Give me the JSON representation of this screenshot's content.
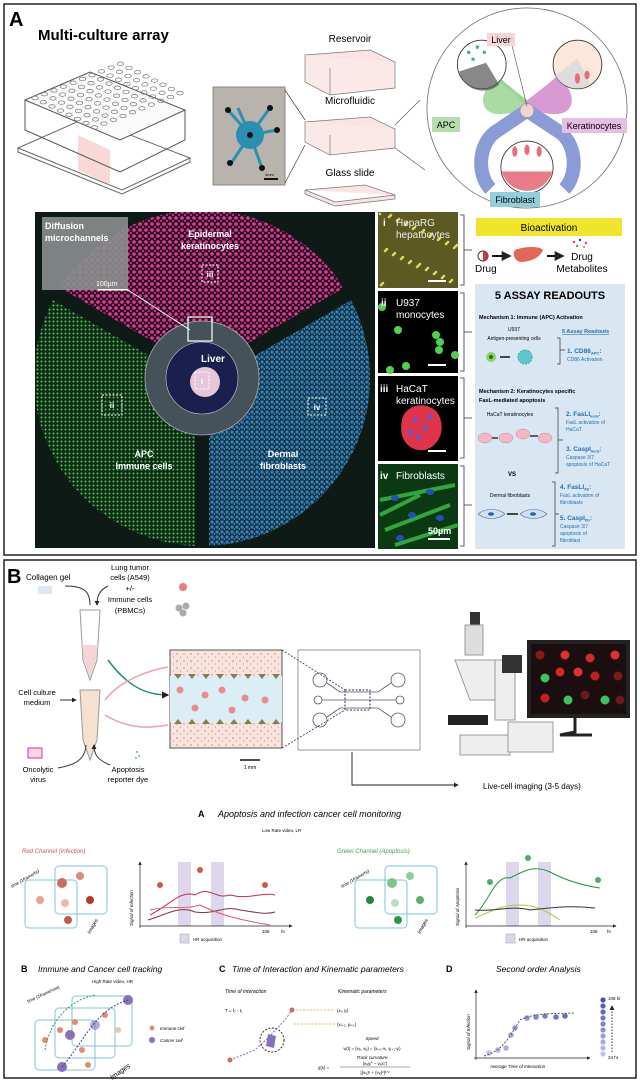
{
  "panel_a": {
    "label": "A",
    "title": "Multi-culture array",
    "layers": [
      "Reservoir",
      "Microfluidic",
      "Glass slide"
    ],
    "chip_scale": "4mm",
    "zoom_labels": {
      "liver": "Liver",
      "apc": "APC",
      "keratinocytes": "Keratinocytes",
      "fibroblast": "Fibroblast"
    },
    "micrograph": {
      "inset_title": [
        "Diffusion",
        "microchannels"
      ],
      "inset_scale": "100µm",
      "keratinocytes": [
        "Epidermal",
        "keratinocytes"
      ],
      "liver": "Liver",
      "apc": [
        "APC",
        "Immune cells"
      ],
      "fibroblasts": [
        "Dermal",
        "fibroblasts"
      ],
      "roi": [
        "i",
        "ii",
        "iii",
        "iv"
      ]
    },
    "insets": [
      {
        "num": "i",
        "name": [
          "HepaRG",
          "hepatocytes"
        ]
      },
      {
        "num": "ii",
        "name": [
          "U937",
          "monocytes"
        ]
      },
      {
        "num": "iii",
        "name": [
          "HaCaT",
          "keratinocytes"
        ]
      },
      {
        "num": "iv",
        "name": [
          "Fibroblasts"
        ],
        "scale": "50µm"
      }
    ],
    "bioactivation": {
      "title": "Bioactivation",
      "drug": "Drug",
      "metabolites": [
        "Drug",
        "Metabolites"
      ]
    },
    "readouts": {
      "title": "5 ASSAY READOUTS",
      "mech1": "Mechanism 1: Immune (APC) Activation",
      "u937": "U937",
      "apc_cells": "Antigen-presenting cells",
      "link": "5 Assay Readouts",
      "r1": {
        "title": "1. CD86",
        "sub": "APC",
        "desc": [
          "CD86 Activation"
        ]
      },
      "mech2": [
        "Mechanism 2: Keratinocytes specific",
        "FasL-mediated apoptosis"
      ],
      "hacat": "HaCaT keratinocytes",
      "r2": {
        "title": "2. FasLI",
        "sub": "kera",
        "desc": [
          "FasL activation of",
          "HaCaT"
        ]
      },
      "r3": {
        "title": "3. CaspI",
        "sub": "kera",
        "desc": [
          "Caspase 3/7",
          "apoptosis of HaCaT"
        ]
      },
      "vs": "VS",
      "fibro": "Dermal fibroblasts",
      "r4": {
        "title": "4. FasLI",
        "sub": "fib",
        "desc": [
          "FasL activation of",
          "fibroblasts"
        ]
      },
      "r5": {
        "title": "5. CaspI",
        "sub": "fib",
        "desc": [
          "Caspase 3/7",
          "apoptosis of",
          "fibroblast"
        ]
      }
    }
  },
  "panel_b": {
    "label": "B",
    "collagen": "Collagen gel",
    "tumor": [
      "Lung tumor",
      "cells (A549)",
      "+/-",
      "Immune cells",
      "(PBMCs)"
    ],
    "medium": [
      "Cell culture",
      "medium"
    ],
    "scale": "1 mm",
    "virus": [
      "Oncolytic",
      "virus"
    ],
    "dye": [
      "Apoptosis",
      "reporter dye"
    ],
    "imaging": "Live-cell imaging (3-5 days)",
    "monitoring": {
      "letter": "A",
      "title": "Apoptosis and infection cancer cell monitoring",
      "lr": "Low Rate video, LR",
      "red_channel": "Red Channel (Infection)",
      "green_channel": "Green Channel (Apoptosis)",
      "time_label": "time (1frame/hr)",
      "images": "Images",
      "y_red": "Signal of Infection",
      "y_green": "Signal of Apoptosis",
      "x_end": "108",
      "x_unit": "hr",
      "hr_legend": "HR acquisition"
    },
    "tracking": {
      "letter": "B",
      "title": "Immune and Cancer cell tracking",
      "hr": "High Rate video, HR",
      "time_label": "time (1frame/min)",
      "immune": "Immune cell",
      "cancer": "Cancer cell",
      "images": "Images"
    },
    "kinematic": {
      "letter": "C",
      "title": "Time of Interaction and Kinematic parameters",
      "toi": "Time of Interaction",
      "kin": "Kinematic parameters",
      "t_eq": "T = t₂ - t₁",
      "p1": "(xᵢ, yᵢ)",
      "p2": "(xᵢ₊₁, yᵢ₊₁)",
      "speed": "Speed",
      "speed_eq": "vᵢ(t) = (vᵢₓ, vᵢᵧ) = (xᵢ₊₁-xᵢ, yᵢ₊₁-yᵢ)",
      "curv": "Track curvature",
      "curv_eq_lhs": "χ(tᵢ) =",
      "curv_num": "|vᵢₓyᵢ'' − vᵢᵧxᵢ''|",
      "curv_den": "[(vᵢₓ)² + (vᵢᵧ)²]³ᐟ²"
    },
    "second_order": {
      "letter": "D",
      "title": "Second order Analysis",
      "ylabel": "Signal of Infection",
      "xlabel": "Average Time of Interaction",
      "top": "108 hr",
      "bottom": "24 hr"
    }
  }
}
